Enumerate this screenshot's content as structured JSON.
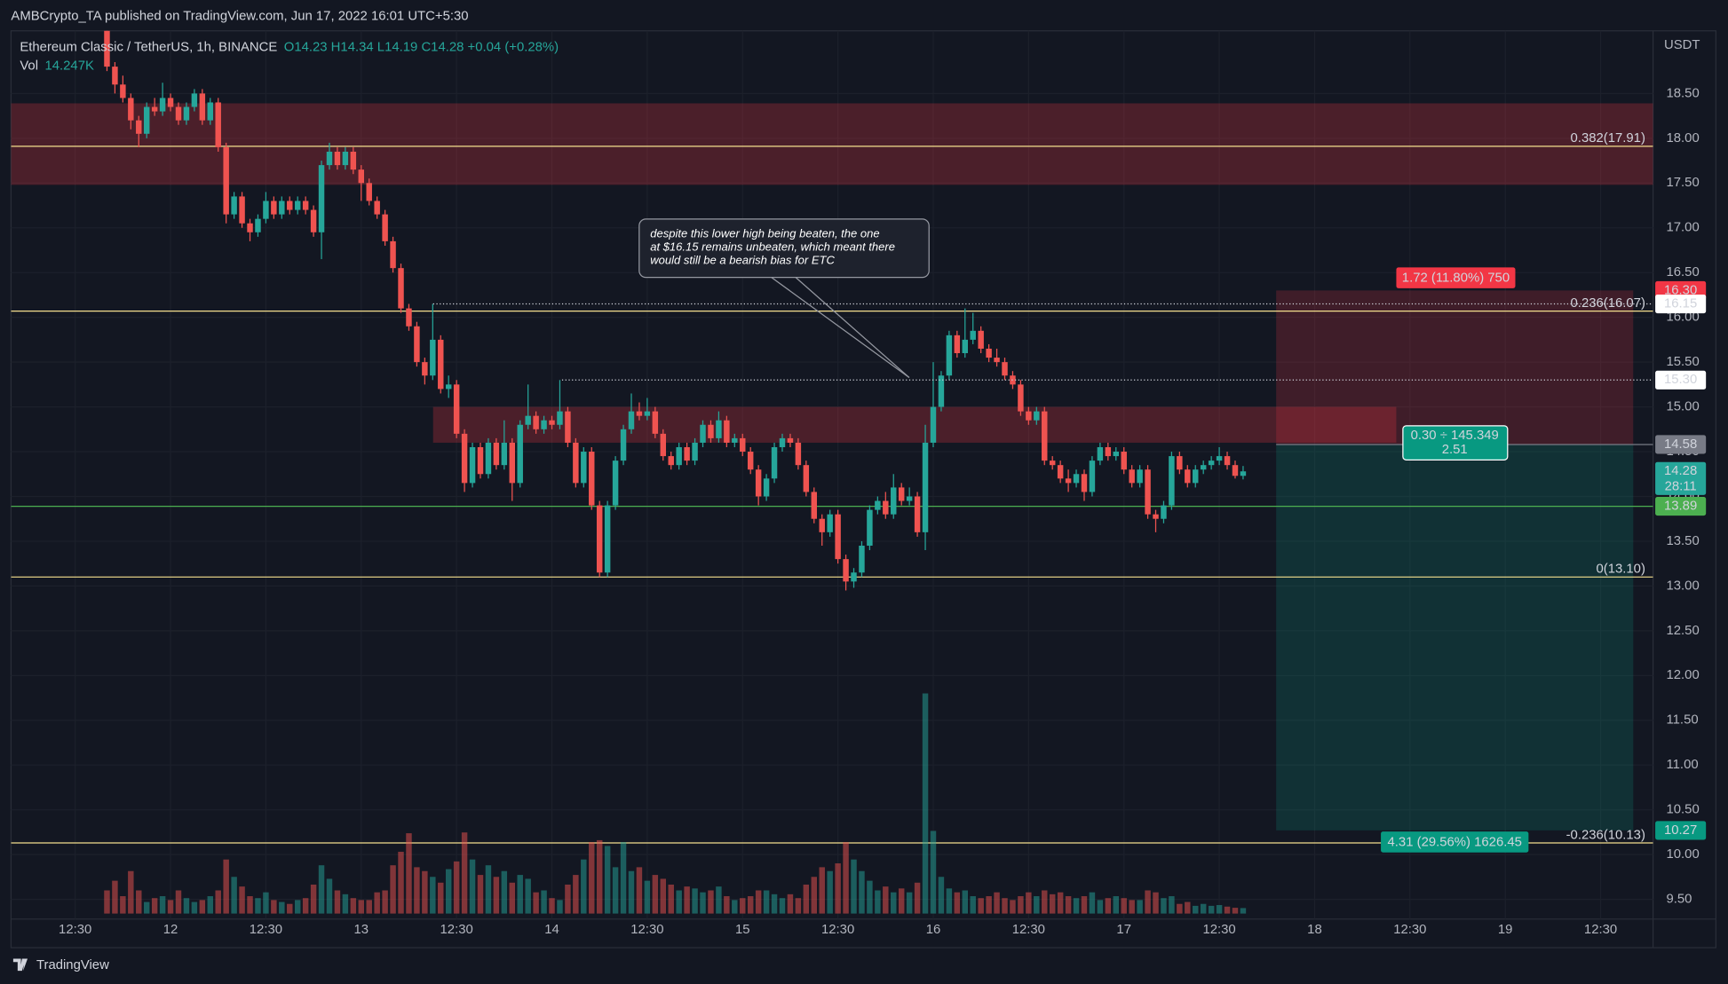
{
  "header": {
    "publisher": "AMBCrypto_TA published on TradingView.com, Jun 17, 2022 16:01 UTC+5:30"
  },
  "footer": {
    "brand": "TradingView"
  },
  "chart_data": {
    "type": "candlestick",
    "title": "Ethereum Classic / TetherUS, 1h, BINANCE",
    "ohlc_legend": "O14.23 H14.34 L14.19 C14.28 +0.04 (+0.28%)",
    "volume_name": "Vol",
    "volume_legend": "14.247K",
    "y_unit": "USDT",
    "up_color": "#26a69a",
    "down_color": "#ef5350",
    "grid": true,
    "xlim": [
      -11.8,
      194.6
    ],
    "xticks": [
      {
        "value": -4,
        "label": "12:30"
      },
      {
        "value": 8,
        "label": "12"
      },
      {
        "value": 20,
        "label": "12:30"
      },
      {
        "value": 32,
        "label": "13"
      },
      {
        "value": 44,
        "label": "12:30"
      },
      {
        "value": 56,
        "label": "14"
      },
      {
        "value": 68,
        "label": "12:30"
      },
      {
        "value": 80,
        "label": "15"
      },
      {
        "value": 92,
        "label": "12:30"
      },
      {
        "value": 104,
        "label": "16"
      },
      {
        "value": 116,
        "label": "12:30"
      },
      {
        "value": 128,
        "label": "17"
      },
      {
        "value": 140,
        "label": "12:30"
      },
      {
        "value": 152,
        "label": "18"
      },
      {
        "value": 164,
        "label": "12:30"
      },
      {
        "value": 176,
        "label": "19"
      },
      {
        "value": 188,
        "label": "12:30"
      }
    ],
    "ylim": [
      9.28,
      19.2
    ],
    "yticks": [
      {
        "value": 9.5,
        "label": "9.50"
      },
      {
        "value": 10,
        "label": "10.00"
      },
      {
        "value": 10.5,
        "label": "10.50"
      },
      {
        "value": 11,
        "label": "11.00"
      },
      {
        "value": 11.5,
        "label": "11.50"
      },
      {
        "value": 12,
        "label": "12.00"
      },
      {
        "value": 12.5,
        "label": "12.50"
      },
      {
        "value": 13,
        "label": "13.00"
      },
      {
        "value": 13.5,
        "label": "13.50"
      },
      {
        "value": 14,
        "label": "14.00"
      },
      {
        "value": 14.5,
        "label": "14.50"
      },
      {
        "value": 15,
        "label": "15.00"
      },
      {
        "value": 15.5,
        "label": "15.50"
      },
      {
        "value": 16,
        "label": "16.00"
      },
      {
        "value": 16.5,
        "label": "16.50"
      },
      {
        "value": 17,
        "label": "17.00"
      },
      {
        "value": 17.5,
        "label": "17.50"
      },
      {
        "value": 18,
        "label": "18.00"
      },
      {
        "value": 18.5,
        "label": "18.50"
      }
    ],
    "volume_lim": [
      0,
      2300
    ],
    "candles": [
      [
        19.25,
        19.3,
        18.75,
        18.8
      ],
      [
        18.8,
        18.85,
        18.5,
        18.6
      ],
      [
        18.6,
        18.7,
        18.4,
        18.45
      ],
      [
        18.45,
        18.5,
        18.1,
        18.2
      ],
      [
        18.2,
        18.25,
        17.9,
        18.05
      ],
      [
        18.05,
        18.4,
        18.0,
        18.35
      ],
      [
        18.35,
        18.45,
        18.25,
        18.3
      ],
      [
        18.3,
        18.62,
        18.25,
        18.45
      ],
      [
        18.45,
        18.5,
        18.3,
        18.35
      ],
      [
        18.35,
        18.4,
        18.15,
        18.2
      ],
      [
        18.2,
        18.4,
        18.15,
        18.35
      ],
      [
        18.35,
        18.55,
        18.3,
        18.5
      ],
      [
        18.5,
        18.55,
        18.15,
        18.2
      ],
      [
        18.2,
        18.45,
        18.15,
        18.4
      ],
      [
        18.4,
        18.45,
        17.85,
        17.9
      ],
      [
        17.9,
        17.95,
        17.05,
        17.15
      ],
      [
        17.15,
        17.4,
        17.1,
        17.35
      ],
      [
        17.35,
        17.4,
        17.0,
        17.05
      ],
      [
        17.05,
        17.1,
        16.85,
        16.95
      ],
      [
        16.95,
        17.15,
        16.9,
        17.1
      ],
      [
        17.1,
        17.4,
        17.05,
        17.3
      ],
      [
        17.3,
        17.35,
        17.1,
        17.15
      ],
      [
        17.15,
        17.35,
        17.1,
        17.3
      ],
      [
        17.3,
        17.35,
        17.15,
        17.2
      ],
      [
        17.2,
        17.35,
        17.15,
        17.3
      ],
      [
        17.3,
        17.35,
        17.15,
        17.2
      ],
      [
        17.2,
        17.25,
        16.9,
        16.95
      ],
      [
        16.95,
        17.75,
        16.65,
        17.7
      ],
      [
        17.7,
        17.95,
        17.65,
        17.85
      ],
      [
        17.85,
        17.9,
        17.65,
        17.7
      ],
      [
        17.7,
        17.9,
        17.65,
        17.85
      ],
      [
        17.85,
        17.9,
        17.6,
        17.65
      ],
      [
        17.65,
        17.7,
        17.3,
        17.5
      ],
      [
        17.5,
        17.55,
        17.25,
        17.3
      ],
      [
        17.3,
        17.35,
        17.1,
        17.15
      ],
      [
        17.15,
        17.2,
        16.8,
        16.85
      ],
      [
        16.85,
        16.9,
        16.5,
        16.55
      ],
      [
        16.55,
        16.6,
        16.05,
        16.1
      ],
      [
        16.1,
        16.15,
        15.85,
        15.9
      ],
      [
        15.9,
        15.95,
        15.45,
        15.5
      ],
      [
        15.5,
        15.55,
        15.25,
        15.35
      ],
      [
        15.35,
        16.15,
        15.3,
        15.75
      ],
      [
        15.75,
        15.8,
        15.15,
        15.2
      ],
      [
        15.2,
        15.35,
        15.1,
        15.25
      ],
      [
        15.25,
        15.3,
        14.65,
        14.7
      ],
      [
        14.7,
        14.75,
        14.05,
        14.15
      ],
      [
        14.15,
        14.6,
        14.1,
        14.55
      ],
      [
        14.55,
        14.6,
        14.2,
        14.25
      ],
      [
        14.25,
        14.65,
        14.2,
        14.6
      ],
      [
        14.6,
        14.65,
        14.3,
        14.35
      ],
      [
        14.35,
        14.85,
        14.3,
        14.6
      ],
      [
        14.6,
        14.65,
        13.95,
        14.15
      ],
      [
        14.15,
        14.85,
        14.1,
        14.8
      ],
      [
        14.8,
        15.25,
        14.75,
        14.9
      ],
      [
        14.9,
        14.95,
        14.7,
        14.75
      ],
      [
        14.75,
        14.9,
        14.7,
        14.85
      ],
      [
        14.85,
        14.9,
        14.75,
        14.8
      ],
      [
        14.8,
        15.3,
        14.75,
        14.95
      ],
      [
        14.95,
        15.0,
        14.55,
        14.6
      ],
      [
        14.6,
        14.65,
        14.1,
        14.15
      ],
      [
        14.15,
        14.55,
        14.1,
        14.5
      ],
      [
        14.5,
        14.55,
        13.85,
        13.9
      ],
      [
        13.9,
        13.95,
        13.1,
        13.15
      ],
      [
        13.15,
        13.95,
        13.1,
        13.9
      ],
      [
        13.9,
        14.45,
        13.85,
        14.4
      ],
      [
        14.4,
        14.8,
        14.35,
        14.75
      ],
      [
        14.75,
        15.15,
        14.7,
        14.95
      ],
      [
        14.95,
        15.05,
        14.85,
        14.9
      ],
      [
        14.9,
        15.1,
        14.85,
        14.95
      ],
      [
        14.95,
        15.0,
        14.65,
        14.7
      ],
      [
        14.7,
        14.75,
        14.4,
        14.45
      ],
      [
        14.45,
        14.5,
        14.3,
        14.35
      ],
      [
        14.35,
        14.6,
        14.3,
        14.55
      ],
      [
        14.55,
        14.6,
        14.35,
        14.4
      ],
      [
        14.4,
        14.65,
        14.35,
        14.6
      ],
      [
        14.6,
        14.85,
        14.55,
        14.8
      ],
      [
        14.8,
        14.85,
        14.6,
        14.65
      ],
      [
        14.65,
        14.95,
        14.6,
        14.85
      ],
      [
        14.85,
        14.9,
        14.55,
        14.6
      ],
      [
        14.6,
        14.7,
        14.55,
        14.65
      ],
      [
        14.65,
        14.7,
        14.45,
        14.5
      ],
      [
        14.5,
        14.55,
        14.25,
        14.3
      ],
      [
        14.3,
        14.35,
        13.9,
        14.0
      ],
      [
        14.0,
        14.25,
        13.95,
        14.2
      ],
      [
        14.2,
        14.6,
        14.15,
        14.55
      ],
      [
        14.55,
        14.7,
        14.5,
        14.65
      ],
      [
        14.65,
        14.7,
        14.55,
        14.6
      ],
      [
        14.6,
        14.65,
        14.3,
        14.35
      ],
      [
        14.35,
        14.4,
        14.0,
        14.05
      ],
      [
        14.05,
        14.1,
        13.7,
        13.75
      ],
      [
        13.75,
        13.8,
        13.45,
        13.6
      ],
      [
        13.6,
        13.85,
        13.55,
        13.8
      ],
      [
        13.8,
        13.85,
        13.25,
        13.3
      ],
      [
        13.3,
        13.35,
        12.95,
        13.05
      ],
      [
        13.05,
        13.2,
        12.98,
        13.15
      ],
      [
        13.15,
        13.5,
        13.1,
        13.45
      ],
      [
        13.45,
        13.9,
        13.4,
        13.85
      ],
      [
        13.85,
        14.0,
        13.8,
        13.95
      ],
      [
        13.95,
        14.05,
        13.75,
        13.8
      ],
      [
        13.8,
        14.25,
        13.75,
        14.1
      ],
      [
        14.1,
        14.15,
        13.9,
        13.95
      ],
      [
        13.95,
        14.1,
        13.9,
        14.0
      ],
      [
        14.0,
        14.05,
        13.55,
        13.6
      ],
      [
        13.6,
        14.8,
        13.4,
        14.6
      ],
      [
        14.6,
        15.5,
        14.55,
        15.0
      ],
      [
        15.0,
        15.4,
        14.95,
        15.35
      ],
      [
        15.35,
        15.85,
        15.3,
        15.8
      ],
      [
        15.8,
        15.85,
        15.55,
        15.6
      ],
      [
        15.6,
        16.1,
        15.55,
        15.75
      ],
      [
        15.75,
        16.05,
        15.7,
        15.85
      ],
      [
        15.85,
        15.9,
        15.6,
        15.65
      ],
      [
        15.65,
        15.7,
        15.5,
        15.55
      ],
      [
        15.55,
        15.65,
        15.45,
        15.5
      ],
      [
        15.5,
        15.55,
        15.3,
        15.35
      ],
      [
        15.35,
        15.4,
        15.2,
        15.25
      ],
      [
        15.25,
        15.3,
        14.9,
        14.95
      ],
      [
        14.95,
        15.0,
        14.8,
        14.85
      ],
      [
        14.85,
        15.0,
        14.8,
        14.95
      ],
      [
        14.95,
        15.0,
        14.35,
        14.4
      ],
      [
        14.4,
        14.45,
        14.3,
        14.35
      ],
      [
        14.35,
        14.4,
        14.15,
        14.2
      ],
      [
        14.2,
        14.3,
        14.05,
        14.15
      ],
      [
        14.15,
        14.3,
        14.1,
        14.25
      ],
      [
        14.25,
        14.3,
        13.95,
        14.05
      ],
      [
        14.05,
        14.45,
        14.0,
        14.4
      ],
      [
        14.4,
        14.6,
        14.35,
        14.55
      ],
      [
        14.55,
        14.6,
        14.4,
        14.45
      ],
      [
        14.45,
        14.55,
        14.4,
        14.5
      ],
      [
        14.5,
        14.55,
        14.25,
        14.3
      ],
      [
        14.3,
        14.35,
        14.1,
        14.15
      ],
      [
        14.15,
        14.35,
        14.1,
        14.3
      ],
      [
        14.3,
        14.35,
        13.75,
        13.8
      ],
      [
        13.8,
        13.85,
        13.6,
        13.75
      ],
      [
        13.75,
        13.95,
        13.7,
        13.9
      ],
      [
        13.9,
        14.5,
        13.85,
        14.45
      ],
      [
        14.45,
        14.5,
        14.25,
        14.3
      ],
      [
        14.3,
        14.35,
        14.1,
        14.15
      ],
      [
        14.15,
        14.35,
        14.1,
        14.3
      ],
      [
        14.3,
        14.4,
        14.25,
        14.35
      ],
      [
        14.35,
        14.45,
        14.3,
        14.4
      ],
      [
        14.4,
        14.55,
        14.35,
        14.45
      ],
      [
        14.45,
        14.5,
        14.3,
        14.35
      ],
      [
        14.35,
        14.4,
        14.2,
        14.23
      ],
      [
        14.23,
        14.34,
        14.19,
        14.28
      ]
    ],
    "volume": [
      60,
      85,
      45,
      110,
      60,
      30,
      40,
      45,
      35,
      60,
      40,
      30,
      35,
      45,
      60,
      140,
      95,
      70,
      45,
      40,
      55,
      35,
      30,
      25,
      35,
      40,
      75,
      125,
      90,
      60,
      50,
      40,
      35,
      35,
      55,
      60,
      125,
      160,
      208,
      120,
      110,
      95,
      80,
      115,
      135,
      210,
      140,
      100,
      125,
      95,
      110,
      80,
      100,
      90,
      55,
      60,
      40,
      35,
      75,
      100,
      140,
      185,
      190,
      175,
      120,
      185,
      110,
      120,
      85,
      100,
      90,
      75,
      60,
      70,
      65,
      55,
      60,
      70,
      45,
      35,
      40,
      45,
      60,
      60,
      50,
      40,
      50,
      40,
      75,
      95,
      120,
      110,
      130,
      185,
      140,
      110,
      85,
      60,
      70,
      55,
      65,
      55,
      80,
      570,
      214,
      95,
      65,
      55,
      60,
      45,
      40,
      45,
      55,
      40,
      35,
      45,
      55,
      45,
      60,
      50,
      55,
      45,
      40,
      45,
      55,
      35,
      40,
      45,
      40,
      35,
      35,
      60,
      55,
      40,
      45,
      25,
      30,
      20,
      25,
      20,
      22,
      18,
      15,
      14.247
    ],
    "zones": [
      {
        "top": 18.39,
        "bottom": 17.48
      },
      {
        "top": 15.0,
        "bottom": 14.6
      }
    ],
    "fib_levels": [
      {
        "value": 17.91,
        "label": "0.382(17.91)"
      },
      {
        "value": 16.07,
        "label": "0.236(16.07)"
      },
      {
        "value": 13.1,
        "label": "0(13.10)"
      },
      {
        "value": 10.13,
        "label": "-0.236(10.13)"
      }
    ],
    "fib_color": "#f5e08e",
    "position": {
      "entry": 14.58,
      "stop": 16.3,
      "target": 10.27,
      "stop_label": "1.72 (11.80%) 750",
      "ratio_label": "0.30 ÷ 145.349",
      "ratio_value": "2.51",
      "target_label": "4.31 (29.56%) 1626.45"
    },
    "price_tags": [
      {
        "value": 16.3,
        "label": "16.30",
        "color": "#f23645",
        "text_color": "#ffffff"
      },
      {
        "value": 16.15,
        "label": "16.15",
        "color": "#ffffff",
        "text_color": "#131722",
        "line": "dotted"
      },
      {
        "value": 15.3,
        "label": "15.30",
        "color": "#ffffff",
        "text_color": "#131722",
        "line": "dotted"
      },
      {
        "value": 14.58,
        "label": "14.58",
        "color": "#787b86",
        "text_color": "#ffffff"
      },
      {
        "value": 14.28,
        "label": "14.28",
        "sub": "28:11",
        "color": "#26a69a",
        "text_color": "#ffffff"
      },
      {
        "value": 13.89,
        "label": "13.89",
        "color": "#4caf50",
        "text_color": "#ffffff",
        "line": "solid"
      },
      {
        "value": 10.27,
        "label": "10.27",
        "color": "#089981",
        "text_color": "#ffffff"
      }
    ],
    "annotation": [
      "despite this lower high being beaten, the one",
      "at $16.15 remains unbeaten, which meant there",
      "would still be a bearish bias for ETC"
    ]
  }
}
